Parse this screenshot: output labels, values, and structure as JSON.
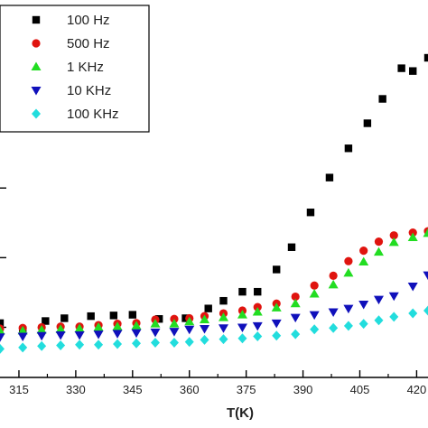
{
  "chart_data": {
    "type": "scatter",
    "xlabel": "T(K)",
    "ylabel": "",
    "xlim": [
      310,
      423
    ],
    "ylim": [
      -0.72,
      4.7
    ],
    "xticks": [
      315,
      330,
      345,
      360,
      375,
      390,
      405,
      420
    ],
    "x_minor_ticks": [
      322.5,
      337.5,
      352.5,
      367.5,
      382.5,
      397.5,
      412.5
    ],
    "yticks": [
      0,
      1,
      2,
      3,
      4
    ],
    "grid": false,
    "legend": {
      "position": "top-left"
    },
    "series": [
      {
        "name": "100 Hz",
        "color": "#000000",
        "marker": "square",
        "x": [
          310,
          316,
          322,
          327,
          334,
          340,
          345,
          352,
          359,
          365,
          369,
          374,
          378,
          383,
          387,
          392,
          397,
          402,
          407,
          411,
          416,
          419,
          423
        ],
        "y": [
          0.06,
          -0.04,
          0.09,
          0.13,
          0.16,
          0.17,
          0.18,
          0.12,
          0.13,
          0.27,
          0.38,
          0.51,
          0.51,
          0.83,
          1.15,
          1.65,
          2.15,
          2.57,
          2.93,
          3.28,
          3.72,
          3.68,
          3.87
        ]
      },
      {
        "name": "500 Hz",
        "color": "#e0140f",
        "marker": "circle",
        "x": [
          310,
          316,
          321,
          326,
          331,
          336,
          341,
          346,
          351,
          356,
          360,
          364,
          369,
          374,
          378,
          383,
          388,
          393,
          398,
          402,
          406,
          410,
          414,
          419,
          423
        ],
        "y": [
          -0.02,
          -0.01,
          0.0,
          0.01,
          0.01,
          0.03,
          0.05,
          0.06,
          0.11,
          0.12,
          0.13,
          0.16,
          0.2,
          0.24,
          0.29,
          0.34,
          0.44,
          0.6,
          0.74,
          0.95,
          1.1,
          1.23,
          1.32,
          1.36,
          1.38
        ]
      },
      {
        "name": "1 KHz",
        "color": "#22dd22",
        "marker": "triangle-up",
        "x": [
          310,
          316,
          321,
          326,
          331,
          336,
          341,
          346,
          351,
          356,
          360,
          364,
          369,
          374,
          378,
          383,
          388,
          393,
          398,
          402,
          406,
          410,
          414,
          419,
          423
        ],
        "y": [
          -0.05,
          -0.05,
          -0.04,
          -0.03,
          -0.02,
          0.0,
          0.01,
          0.02,
          0.05,
          0.05,
          0.08,
          0.11,
          0.14,
          0.18,
          0.22,
          0.28,
          0.34,
          0.48,
          0.61,
          0.78,
          0.94,
          1.08,
          1.22,
          1.29,
          1.35
        ]
      },
      {
        "name": "10 KHz",
        "color": "#1010bb",
        "marker": "triangle-down",
        "x": [
          310,
          316,
          321,
          326,
          331,
          336,
          341,
          346,
          351,
          356,
          360,
          364,
          369,
          374,
          378,
          383,
          388,
          393,
          398,
          402,
          406,
          410,
          414,
          419,
          423
        ],
        "y": [
          -0.14,
          -0.13,
          -0.12,
          -0.11,
          -0.11,
          -0.1,
          -0.09,
          -0.08,
          -0.07,
          -0.06,
          -0.03,
          -0.02,
          -0.01,
          0.0,
          0.02,
          0.06,
          0.14,
          0.18,
          0.22,
          0.27,
          0.33,
          0.4,
          0.45,
          0.59,
          0.75
        ]
      },
      {
        "name": "100 KHz",
        "color": "#22dddd",
        "marker": "diamond",
        "x": [
          310,
          316,
          321,
          326,
          331,
          336,
          341,
          346,
          351,
          356,
          360,
          364,
          369,
          374,
          378,
          383,
          388,
          393,
          398,
          402,
          406,
          410,
          414,
          419,
          423
        ],
        "y": [
          -0.31,
          -0.29,
          -0.27,
          -0.26,
          -0.25,
          -0.25,
          -0.24,
          -0.23,
          -0.22,
          -0.22,
          -0.21,
          -0.18,
          -0.17,
          -0.16,
          -0.13,
          -0.12,
          -0.1,
          -0.03,
          -0.01,
          0.02,
          0.05,
          0.1,
          0.15,
          0.2,
          0.24
        ]
      }
    ]
  }
}
